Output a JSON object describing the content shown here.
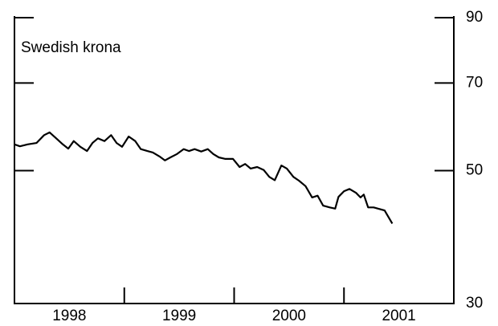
{
  "chart_data": {
    "type": "line",
    "title": "Swedish krona",
    "x": [
      1998.0,
      1998.05,
      1998.12,
      1998.2,
      1998.27,
      1998.32,
      1998.38,
      1998.44,
      1998.49,
      1998.54,
      1998.6,
      1998.66,
      1998.71,
      1998.76,
      1998.82,
      1998.88,
      1998.93,
      1998.98,
      1999.04,
      1999.1,
      1999.15,
      1999.21,
      1999.26,
      1999.32,
      1999.37,
      1999.42,
      1999.48,
      1999.54,
      1999.59,
      1999.64,
      1999.7,
      1999.76,
      1999.81,
      1999.86,
      1999.92,
      1999.99,
      2000.05,
      2000.1,
      2000.15,
      2000.21,
      2000.27,
      2000.32,
      2000.37,
      2000.43,
      2000.48,
      2000.54,
      2000.59,
      2000.65,
      2000.71,
      2000.76,
      2000.81,
      2000.87,
      2000.92,
      2000.95,
      2001.0,
      2001.05,
      2001.11,
      2001.15,
      2001.18,
      2001.22,
      2001.27,
      2001.31,
      2001.37,
      2001.44
    ],
    "series": [
      {
        "color": "#000000",
        "values": [
          55.3,
          54.9,
          55.3,
          55.6,
          57.3,
          57.9,
          56.6,
          55.3,
          54.4,
          56.0,
          54.8,
          53.9,
          55.6,
          56.6,
          56.0,
          57.3,
          55.6,
          54.8,
          57.0,
          56.0,
          54.3,
          53.9,
          53.6,
          52.8,
          52.0,
          52.6,
          53.3,
          54.3,
          53.9,
          54.3,
          53.8,
          54.3,
          53.3,
          52.6,
          52.3,
          52.3,
          50.7,
          51.3,
          50.4,
          50.7,
          50.1,
          48.8,
          48.2,
          51.0,
          50.4,
          48.8,
          48.1,
          47.1,
          45.1,
          45.4,
          43.7,
          43.4,
          43.2,
          45.2,
          46.2,
          46.6,
          45.9,
          45.1,
          45.6,
          43.4,
          43.4,
          43.2,
          42.9,
          40.8
        ]
      }
    ],
    "xlim": [
      1998,
      2002
    ],
    "xticks": [
      1999,
      2000,
      2001
    ],
    "xtick_labels": [
      {
        "value": 1998.5,
        "label": "1998"
      },
      {
        "value": 1999.5,
        "label": "1999"
      },
      {
        "value": 2000.5,
        "label": "2000"
      },
      {
        "value": 2001.5,
        "label": "2001"
      }
    ],
    "ylim": [
      30,
      90
    ],
    "yticks": [
      30,
      50,
      70,
      90
    ],
    "log_scale": true
  }
}
